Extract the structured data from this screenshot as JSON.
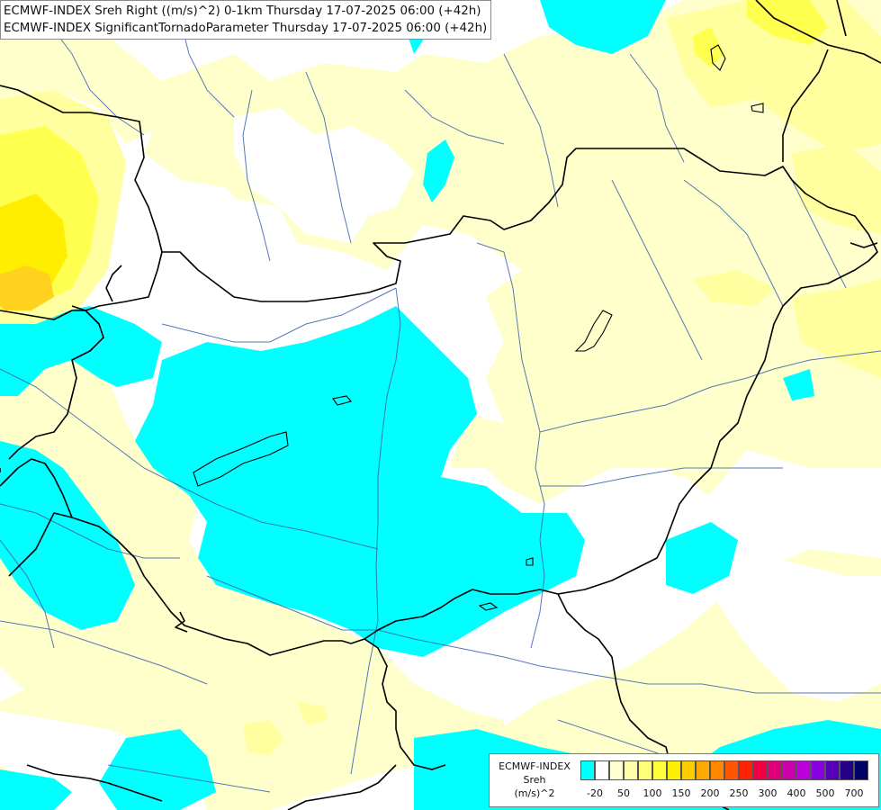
{
  "title": {
    "line1": "ECMWF-INDEX Sreh Right ((m/s)^2) 0-1km Thursday 17-07-2025 06:00 (+42h)",
    "line2": "ECMWF-INDEX SignificantTornadoParameter Thursday 17-07-2025 06:00 (+42h)"
  },
  "legend": {
    "model": "ECMWF-INDEX",
    "variable": "Sreh",
    "unit": "(m/s)^2",
    "colors": [
      "#00ffff",
      "#ffffff",
      "#ffffd2",
      "#ffffaa",
      "#ffff7a",
      "#ffff3c",
      "#ffee00",
      "#ffcc00",
      "#ffaa00",
      "#ff8800",
      "#ff5500",
      "#ff2200",
      "#ee0044",
      "#dd0077",
      "#cc00aa",
      "#bb00dd",
      "#8800dd",
      "#5500bb",
      "#220088",
      "#000066"
    ],
    "tick_labels": [
      "-20",
      "50",
      "100",
      "150",
      "200",
      "250",
      "300",
      "400",
      "500",
      "700"
    ]
  },
  "map_colors": {
    "cyan": "#00ffff",
    "pale_yellow": "#ffffcc",
    "light_yellow": "#ffffa0",
    "yellow": "#ffff50",
    "bright_yellow": "#ffee00",
    "orange_yellow": "#ffd21e",
    "border": "#000000",
    "river": "#3a5fb0"
  }
}
